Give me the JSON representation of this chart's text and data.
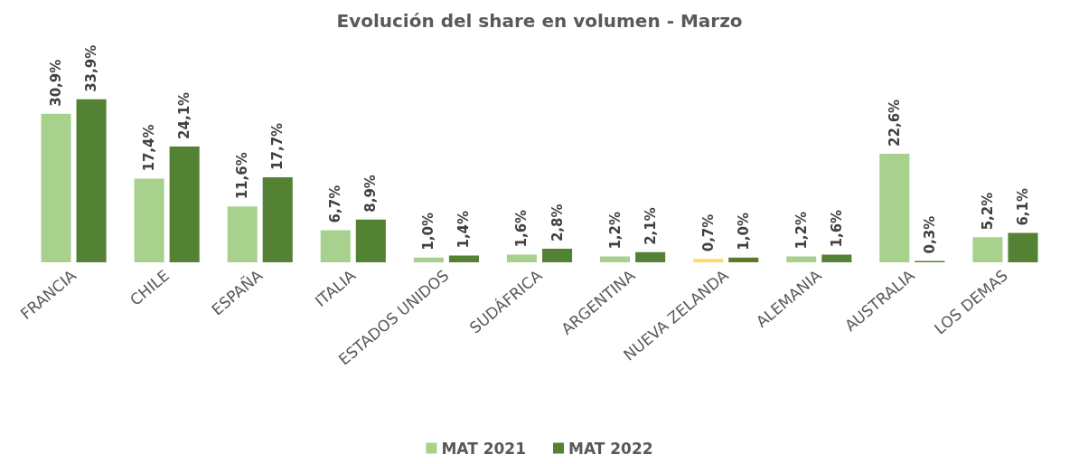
{
  "chart_data": {
    "type": "bar",
    "title": "Evolución del share en volumen - Marzo",
    "categories": [
      "FRANCIA",
      "CHILE",
      "ESPAÑA",
      "ITALIA",
      "ESTADOS UNIDOS",
      "SUDÁFRICA",
      "ARGENTINA",
      "NUEVA ZELANDA",
      "ALEMANIA",
      "AUSTRALIA",
      "LOS DEMAS"
    ],
    "series": [
      {
        "name": "MAT 2021",
        "color": "#a9d18e",
        "colors": [
          "#a9d18e",
          "#a9d18e",
          "#a9d18e",
          "#a9d18e",
          "#a9d18e",
          "#a9d18e",
          "#a9d18e",
          "#ffd966",
          "#a9d18e",
          "#a9d18e",
          "#a9d18e"
        ],
        "values": [
          30.9,
          17.4,
          11.6,
          6.7,
          1.0,
          1.6,
          1.2,
          0.7,
          1.2,
          22.6,
          5.2
        ],
        "value_labels": [
          "30,9%",
          "17,4%",
          "11,6%",
          "6,7%",
          "1,0%",
          "1,6%",
          "1,2%",
          "0,7%",
          "1,2%",
          "22,6%",
          "5,2%"
        ]
      },
      {
        "name": "MAT 2022",
        "color": "#548235",
        "colors": [
          "#548235",
          "#548235",
          "#548235",
          "#548235",
          "#548235",
          "#548235",
          "#548235",
          "#7f6000",
          "#548235",
          "#548235",
          "#548235"
        ],
        "values": [
          33.9,
          24.1,
          17.7,
          8.9,
          1.4,
          2.8,
          2.1,
          1.0,
          1.6,
          0.3,
          6.1
        ],
        "value_labels": [
          "33,9%",
          "24,1%",
          "17,7%",
          "8,9%",
          "1,4%",
          "2,8%",
          "2,1%",
          "1,0%",
          "1,6%",
          "0,3%",
          "6,1%"
        ]
      }
    ],
    "legend": "bottom"
  }
}
